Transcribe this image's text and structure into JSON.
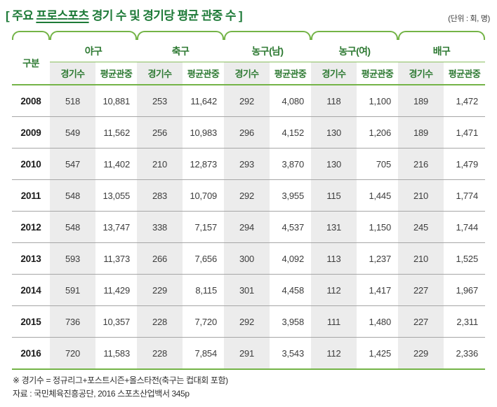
{
  "title": {
    "seg1": "[ 주요 ",
    "seg2": "프로스포츠",
    "seg3": " 경기 수 및 경기당 평균 관중 수 ]"
  },
  "unit_label": "(단위 : 회, 명)",
  "table": {
    "corner_label": "구분",
    "groups": [
      {
        "label": "야구"
      },
      {
        "label": "축구"
      },
      {
        "label": "농구(남)"
      },
      {
        "label": "농구(여)"
      },
      {
        "label": "배구"
      }
    ],
    "sub_labels": {
      "games": "경기수",
      "avg": "평균관중"
    },
    "rows": [
      {
        "year": "2008",
        "values": [
          "518",
          "10,881",
          "253",
          "11,642",
          "292",
          "4,080",
          "118",
          "1,100",
          "189",
          "1,472"
        ]
      },
      {
        "year": "2009",
        "values": [
          "549",
          "11,562",
          "256",
          "10,983",
          "296",
          "4,152",
          "130",
          "1,206",
          "189",
          "1,471"
        ]
      },
      {
        "year": "2010",
        "values": [
          "547",
          "11,402",
          "210",
          "12,873",
          "293",
          "3,870",
          "130",
          "705",
          "216",
          "1,479"
        ]
      },
      {
        "year": "2011",
        "values": [
          "548",
          "13,055",
          "283",
          "10,709",
          "292",
          "3,955",
          "115",
          "1,445",
          "210",
          "1,774"
        ]
      },
      {
        "year": "2012",
        "values": [
          "548",
          "13,747",
          "338",
          "7,157",
          "294",
          "4,537",
          "131",
          "1,150",
          "245",
          "1,744"
        ]
      },
      {
        "year": "2013",
        "values": [
          "593",
          "11,373",
          "266",
          "7,656",
          "300",
          "4,092",
          "113",
          "1,237",
          "210",
          "1,525"
        ]
      },
      {
        "year": "2014",
        "values": [
          "591",
          "11,429",
          "229",
          "8,115",
          "301",
          "4,458",
          "112",
          "1,417",
          "227",
          "1,967"
        ]
      },
      {
        "year": "2015",
        "values": [
          "736",
          "10,357",
          "228",
          "7,720",
          "292",
          "3,958",
          "111",
          "1,480",
          "227",
          "2,311"
        ]
      },
      {
        "year": "2016",
        "values": [
          "720",
          "11,583",
          "228",
          "7,854",
          "291",
          "3,543",
          "112",
          "1,425",
          "229",
          "2,336"
        ]
      }
    ]
  },
  "footnotes": [
    "※ 경기수 = 정규리그+포스트시즌+올스타전(축구는 컵대회 포함)",
    "자료 : 국민체육진흥공단, 2016 스포츠산업백서 345p"
  ],
  "colors": {
    "accent_green": "#74b447",
    "title_green": "#1e7a38",
    "header_text_green": "#2e7a33",
    "column_shade": "#ececec",
    "row_divider": "#a6a6a6"
  }
}
